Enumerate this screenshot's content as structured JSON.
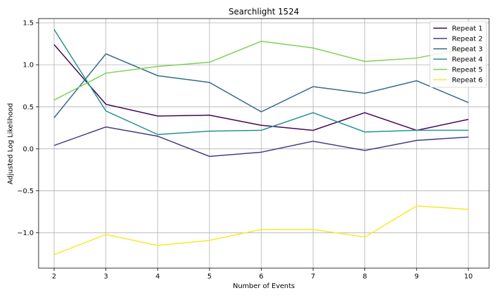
{
  "chart_data": {
    "type": "line",
    "title": "Searchlight 1524",
    "xlabel": "Number of Events",
    "ylabel": "Adjusted Log Likelihood",
    "x": [
      2,
      3,
      4,
      5,
      6,
      7,
      8,
      9,
      10
    ],
    "xlim": [
      1.7,
      10.4
    ],
    "ylim": [
      -1.42,
      1.55
    ],
    "xticks": [
      2,
      3,
      4,
      5,
      6,
      7,
      8,
      9,
      10
    ],
    "yticks": [
      -1.0,
      -0.5,
      0.0,
      0.5,
      1.0,
      1.5
    ],
    "ytick_labels": [
      "−1.0",
      "−0.5",
      "0.0",
      "0.5",
      "1.0",
      "1.5"
    ],
    "grid": true,
    "legend_position": "top-right",
    "series": [
      {
        "name": "Repeat 1",
        "color": "#440154",
        "values": [
          1.24,
          0.53,
          0.39,
          0.4,
          0.28,
          0.22,
          0.43,
          0.22,
          0.35
        ]
      },
      {
        "name": "Repeat 2",
        "color": "#443983",
        "values": [
          0.04,
          0.26,
          0.15,
          -0.09,
          -0.04,
          0.09,
          -0.02,
          0.1,
          0.14
        ]
      },
      {
        "name": "Repeat 3",
        "color": "#31688e",
        "values": [
          0.37,
          1.13,
          0.87,
          0.79,
          0.44,
          0.74,
          0.66,
          0.81,
          0.55
        ]
      },
      {
        "name": "Repeat 4",
        "color": "#21918c",
        "values": [
          1.42,
          0.45,
          0.17,
          0.21,
          0.22,
          0.43,
          0.2,
          0.22,
          0.22
        ]
      },
      {
        "name": "Repeat 5",
        "color": "#7ad151",
        "values": [
          0.58,
          0.9,
          0.98,
          1.03,
          1.28,
          1.2,
          1.04,
          1.08,
          1.2
        ]
      },
      {
        "name": "Repeat 6",
        "color": "#fde725",
        "values": [
          -1.26,
          -1.02,
          -1.15,
          -1.09,
          -0.96,
          -0.96,
          -1.05,
          -0.68,
          -0.72
        ]
      }
    ]
  }
}
